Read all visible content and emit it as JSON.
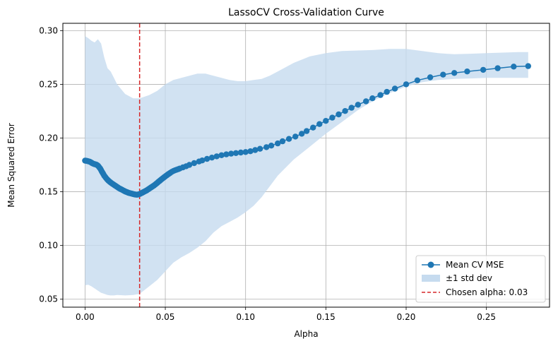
{
  "chart_data": {
    "type": "line",
    "title": "LassoCV Cross-Validation Curve",
    "xlabel": "Alpha",
    "ylabel": "Mean Squared Error",
    "xlim": [
      -0.0138,
      0.2893
    ],
    "ylim": [
      0.0426,
      0.3068
    ],
    "xticks": [
      0.0,
      0.05,
      0.1,
      0.15,
      0.2,
      0.25
    ],
    "xtick_labels": [
      "0.00",
      "0.05",
      "0.10",
      "0.15",
      "0.20",
      "0.25"
    ],
    "yticks": [
      0.05,
      0.1,
      0.15,
      0.2,
      0.25,
      0.3
    ],
    "ytick_labels": [
      "0.05",
      "0.10",
      "0.15",
      "0.20",
      "0.25",
      "0.30"
    ],
    "grid": true,
    "legend_position": "lower-right",
    "colors": {
      "line": "#1f77b4",
      "band": "#c6dbef",
      "vline": "#d62728"
    },
    "series": [
      {
        "name": "Mean CV MSE",
        "marker": "circle",
        "x": [
          0.0,
          0.0005,
          0.001,
          0.0015,
          0.002,
          0.0025,
          0.003,
          0.0035,
          0.004,
          0.0045,
          0.005,
          0.0055,
          0.006,
          0.0065,
          0.007,
          0.0075,
          0.008,
          0.0085,
          0.009,
          0.0095,
          0.01,
          0.0105,
          0.011,
          0.0115,
          0.012,
          0.0125,
          0.013,
          0.0135,
          0.014,
          0.0145,
          0.015,
          0.0155,
          0.016,
          0.0165,
          0.017,
          0.0175,
          0.018,
          0.0185,
          0.019,
          0.0195,
          0.02,
          0.0205,
          0.021,
          0.0215,
          0.022,
          0.0225,
          0.023,
          0.0235,
          0.024,
          0.0245,
          0.025,
          0.0255,
          0.026,
          0.0265,
          0.027,
          0.0275,
          0.028,
          0.0285,
          0.029,
          0.0295,
          0.03,
          0.0305,
          0.031,
          0.0315,
          0.032,
          0.0325,
          0.033,
          0.0335,
          0.034,
          0.0345,
          0.035,
          0.0355,
          0.036,
          0.0365,
          0.037,
          0.0375,
          0.038,
          0.0385,
          0.039,
          0.0395,
          0.04,
          0.0405,
          0.041,
          0.0415,
          0.042,
          0.0425,
          0.043,
          0.0435,
          0.044,
          0.0445,
          0.045,
          0.0455,
          0.046,
          0.0465,
          0.047,
          0.0475,
          0.048,
          0.0485,
          0.049,
          0.0495,
          0.05,
          0.0505,
          0.051,
          0.0515,
          0.052,
          0.0525,
          0.053,
          0.054,
          0.055,
          0.056,
          0.057,
          0.058,
          0.059,
          0.061,
          0.063,
          0.065,
          0.068,
          0.071,
          0.073,
          0.076,
          0.079,
          0.082,
          0.085,
          0.088,
          0.091,
          0.094,
          0.097,
          0.1,
          0.103,
          0.106,
          0.109,
          0.113,
          0.116,
          0.12,
          0.123,
          0.127,
          0.131,
          0.135,
          0.138,
          0.142,
          0.146,
          0.15,
          0.154,
          0.158,
          0.162,
          0.166,
          0.17,
          0.175,
          0.179,
          0.184,
          0.188,
          0.193,
          0.2,
          0.207,
          0.215,
          0.223,
          0.23,
          0.238,
          0.248,
          0.257,
          0.267,
          0.276
        ],
        "y": [
          0.179,
          0.1789,
          0.1788,
          0.1786,
          0.1784,
          0.1782,
          0.1779,
          0.1775,
          0.1771,
          0.1766,
          0.1762,
          0.1759,
          0.1757,
          0.1755,
          0.1753,
          0.1749,
          0.1743,
          0.1735,
          0.1725,
          0.1715,
          0.1702,
          0.1688,
          0.1675,
          0.1663,
          0.165,
          0.164,
          0.163,
          0.162,
          0.1612,
          0.1605,
          0.1598,
          0.1592,
          0.1586,
          0.158,
          0.1575,
          0.157,
          0.1565,
          0.156,
          0.1555,
          0.155,
          0.1545,
          0.154,
          0.1535,
          0.1531,
          0.1527,
          0.1523,
          0.1519,
          0.1515,
          0.1511,
          0.1507,
          0.1503,
          0.15,
          0.1497,
          0.1494,
          0.1491,
          0.1489,
          0.1487,
          0.1485,
          0.1483,
          0.1481,
          0.1479,
          0.1477,
          0.1475,
          0.1474,
          0.1473,
          0.1473,
          0.1474,
          0.1476,
          0.1479,
          0.1482,
          0.1486,
          0.149,
          0.1494,
          0.1498,
          0.1502,
          0.1506,
          0.151,
          0.1514,
          0.1519,
          0.1524,
          0.1529,
          0.1534,
          0.1539,
          0.1544,
          0.1549,
          0.1554,
          0.1559,
          0.1565,
          0.1571,
          0.1577,
          0.1583,
          0.159,
          0.1596,
          0.1602,
          0.1608,
          0.1614,
          0.162,
          0.1626,
          0.1632,
          0.1638,
          0.1643,
          0.1649,
          0.1654,
          0.166,
          0.1665,
          0.167,
          0.1675,
          0.1685,
          0.1693,
          0.17,
          0.1705,
          0.171,
          0.1716,
          0.1727,
          0.1738,
          0.175,
          0.1767,
          0.1782,
          0.1792,
          0.1806,
          0.1818,
          0.183,
          0.184,
          0.1848,
          0.1855,
          0.186,
          0.1865,
          0.187,
          0.1877,
          0.1888,
          0.19,
          0.1915,
          0.193,
          0.195,
          0.197,
          0.1992,
          0.2014,
          0.204,
          0.2065,
          0.2097,
          0.213,
          0.216,
          0.219,
          0.222,
          0.2252,
          0.2282,
          0.231,
          0.2342,
          0.237,
          0.24,
          0.243,
          0.246,
          0.25,
          0.2537,
          0.2565,
          0.259,
          0.2606,
          0.262,
          0.2635,
          0.265,
          0.2665,
          0.267
        ]
      },
      {
        "name": "±1 std dev",
        "type": "band",
        "x": [
          0.0,
          0.002,
          0.004,
          0.006,
          0.008,
          0.01,
          0.012,
          0.014,
          0.016,
          0.018,
          0.02,
          0.025,
          0.03,
          0.034,
          0.04,
          0.045,
          0.05,
          0.055,
          0.06,
          0.065,
          0.07,
          0.075,
          0.08,
          0.085,
          0.09,
          0.095,
          0.1,
          0.105,
          0.11,
          0.115,
          0.12,
          0.13,
          0.14,
          0.15,
          0.16,
          0.17,
          0.18,
          0.19,
          0.2,
          0.21,
          0.22,
          0.23,
          0.24,
          0.25,
          0.26,
          0.27,
          0.276
        ],
        "upper": [
          0.295,
          0.293,
          0.2905,
          0.289,
          0.292,
          0.288,
          0.275,
          0.265,
          0.262,
          0.256,
          0.25,
          0.241,
          0.237,
          0.237,
          0.24,
          0.244,
          0.25,
          0.254,
          0.256,
          0.258,
          0.26,
          0.26,
          0.258,
          0.256,
          0.254,
          0.253,
          0.253,
          0.254,
          0.255,
          0.258,
          0.262,
          0.27,
          0.276,
          0.279,
          0.281,
          0.2815,
          0.282,
          0.283,
          0.283,
          0.281,
          0.279,
          0.278,
          0.2785,
          0.279,
          0.2795,
          0.28,
          0.28
        ],
        "lower": [
          0.063,
          0.0635,
          0.062,
          0.06,
          0.058,
          0.056,
          0.055,
          0.054,
          0.0535,
          0.0535,
          0.054,
          0.0535,
          0.054,
          0.055,
          0.062,
          0.068,
          0.076,
          0.084,
          0.089,
          0.093,
          0.098,
          0.104,
          0.112,
          0.118,
          0.122,
          0.126,
          0.131,
          0.137,
          0.145,
          0.155,
          0.165,
          0.18,
          0.192,
          0.204,
          0.215,
          0.226,
          0.235,
          0.242,
          0.248,
          0.252,
          0.254,
          0.255,
          0.2555,
          0.256,
          0.256,
          0.256,
          0.256
        ]
      }
    ],
    "vline": {
      "x": 0.034,
      "style": "dashed",
      "label": "Chosen alpha: 0.03"
    },
    "legend": [
      "Mean CV MSE",
      "±1 std dev",
      "Chosen alpha: 0.03"
    ]
  }
}
